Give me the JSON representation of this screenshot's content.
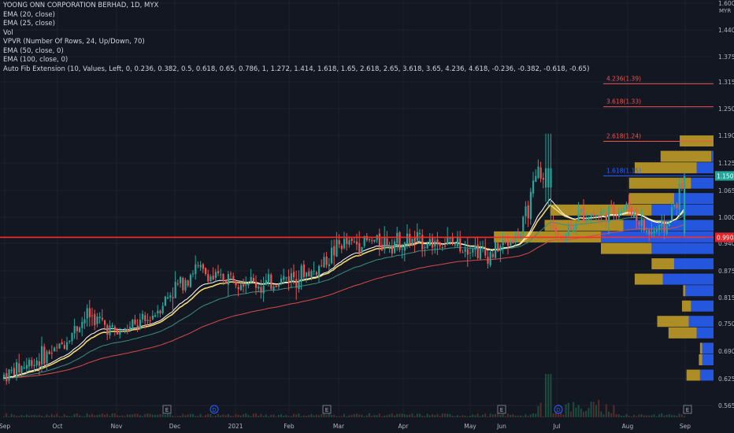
{
  "legend": {
    "title": "YOONG ONN CORPORATION BERHAD, 1D, MYX",
    "lines": [
      "EMA (20, close)",
      "EMA (25, close)",
      "Vol",
      "VPVR (Number Of Rows, 24, Up/Down, 70)",
      "EMA (50, close, 0)",
      "EMA (100, close, 0)",
      "Auto Fib Extension (10, Values, Left, 0, 0.236, 0.382, 0.5, 0.618, 0.65, 0.786, 1, 1.272, 1.414, 1.618, 1.65, 2.618, 2.65, 3.618, 3.65, 4.236, 4.618, -0.236, -0.382, -0.618, -0.65)"
    ]
  },
  "colors": {
    "background": "#131722",
    "up": "#26a69a",
    "down": "#ef5350",
    "ema20": "#ffffff",
    "ema25": "#f5d76e",
    "ema50": "#3d8c80",
    "ema100": "#d84a4a",
    "vp_up": "#2962ff",
    "vp_down": "#c9a227",
    "hline": "#ff2b2b"
  },
  "chart_data": {
    "type": "candlestick",
    "symbol": "YOONG ONN CORPORATION BERHAD",
    "interval": "1D",
    "exchange": "MYX",
    "y_axis": {
      "unit": "MYR",
      "range": [
        0.55,
        1.6
      ],
      "ticks": [
        "1.600",
        "1.440",
        "1.375",
        "1.315",
        "1.250",
        "1.190",
        "1.125",
        "1.065",
        "1.000",
        "0.940",
        "0.875",
        "0.815",
        "0.750",
        "0.690",
        "0.625",
        "0.565"
      ]
    },
    "x_axis": {
      "ticks": [
        "Sep",
        "Oct",
        "Nov",
        "Dec",
        "2021",
        "Feb",
        "Mar",
        "Apr",
        "May",
        "Jun",
        "Jul",
        "Aug",
        "Sep"
      ]
    },
    "current_price": {
      "label": "1.150",
      "value": 1.15
    },
    "horizontal_line": {
      "label": "0.990",
      "value": 0.99
    },
    "fib_levels": [
      {
        "ratio": "4.236",
        "price": "1.39",
        "label": "4.236(1.39)"
      },
      {
        "ratio": "3.618",
        "price": "1.33",
        "label": "3.618(1.33)"
      },
      {
        "ratio": "2.618",
        "price": "1.24",
        "label": "2.618(1.24)"
      },
      {
        "ratio": "1.618",
        "price": "1.15",
        "label": "1.618(1.15)"
      }
    ],
    "event_markers": [
      {
        "symbol": "E",
        "date": "Dec"
      },
      {
        "symbol": "D",
        "date": "2021"
      },
      {
        "symbol": "E",
        "date": "Feb"
      },
      {
        "symbol": "E",
        "date": "May"
      },
      {
        "symbol": "D",
        "date": "Jul"
      },
      {
        "symbol": "E",
        "date": "Aug"
      }
    ],
    "price_path": [
      [
        "Sep",
        0.63
      ],
      [
        "Oct",
        0.7
      ],
      [
        "Oct",
        0.79
      ],
      [
        "Nov",
        0.74
      ],
      [
        "Nov",
        0.77
      ],
      [
        "Dec",
        0.86
      ],
      [
        "Dec",
        0.91
      ],
      [
        "Dec",
        0.88
      ],
      [
        "2021",
        0.89
      ],
      [
        "2021",
        0.86
      ],
      [
        "Feb",
        0.89
      ],
      [
        "Feb",
        0.9
      ],
      [
        "Mar",
        0.97
      ],
      [
        "Mar",
        0.98
      ],
      [
        "Apr",
        0.98
      ],
      [
        "May",
        0.97
      ],
      [
        "May",
        0.94
      ],
      [
        "Jun",
        0.97
      ],
      [
        "Jun",
        1.0
      ],
      [
        "Jun",
        1.17
      ],
      [
        "Jul",
        0.98
      ],
      [
        "Jul",
        1.05
      ],
      [
        "Jul",
        1.05
      ],
      [
        "Aug",
        1.07
      ],
      [
        "Aug",
        1.0
      ],
      [
        "Aug",
        1.02
      ],
      [
        "Sep",
        1.15
      ]
    ],
    "vpvr_rows": [
      {
        "price": 1.24,
        "up": 0.0,
        "down": 0.3
      },
      {
        "price": 1.2,
        "up": 0.02,
        "down": 0.45
      },
      {
        "price": 1.17,
        "up": 0.15,
        "down": 0.55
      },
      {
        "price": 1.13,
        "up": 0.2,
        "down": 0.55
      },
      {
        "price": 1.09,
        "up": 0.35,
        "down": 0.4
      },
      {
        "price": 1.06,
        "up": 0.55,
        "down": 0.9
      },
      {
        "price": 1.02,
        "up": 0.8,
        "down": 0.7
      },
      {
        "price": 0.99,
        "up": 1.0,
        "down": 0.95
      },
      {
        "price": 0.96,
        "up": 0.55,
        "down": 0.45
      },
      {
        "price": 0.92,
        "up": 0.35,
        "down": 0.2
      },
      {
        "price": 0.88,
        "up": 0.45,
        "down": 0.25
      },
      {
        "price": 0.85,
        "up": 0.25,
        "down": 0.02
      },
      {
        "price": 0.81,
        "up": 0.2,
        "down": 0.08
      },
      {
        "price": 0.77,
        "up": 0.22,
        "down": 0.28
      },
      {
        "price": 0.74,
        "up": 0.15,
        "down": 0.25
      },
      {
        "price": 0.7,
        "up": 0.1,
        "down": 0.02
      },
      {
        "price": 0.67,
        "up": 0.1,
        "down": 0.03
      },
      {
        "price": 0.63,
        "up": 0.12,
        "down": 0.12
      }
    ]
  }
}
